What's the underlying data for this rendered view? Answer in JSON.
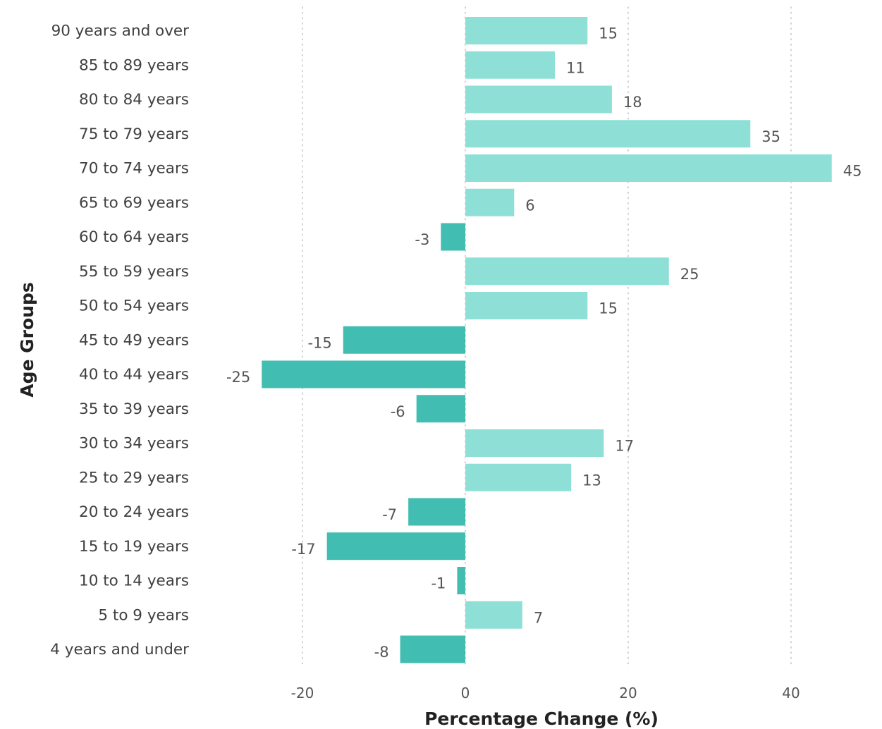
{
  "colors": {
    "positive": "#8ee0d6",
    "negative": "#42bdb1",
    "grid": "#c4c4c4",
    "category_text": "#404040",
    "tick_text": "#555555",
    "data_label_text": "#555555",
    "axis_title_text": "#222222"
  },
  "chart_data": {
    "type": "bar",
    "orientation": "horizontal",
    "xlabel": "Percentage Change (%)",
    "ylabel": "Age Groups",
    "xlim": [
      -30,
      47
    ],
    "xticks": [
      -20,
      0,
      20,
      40
    ],
    "grid": "vertical dotted",
    "categories": [
      "90 years and over",
      "85 to 89 years",
      "80 to 84 years",
      "75 to 79 years",
      "70 to 74 years",
      "65 to 69 years",
      "60 to 64 years",
      "55 to 59 years",
      "50 to 54 years",
      "45 to 49 years",
      "40 to 44 years",
      "35 to 39 years",
      "30 to 34 years",
      "25 to 29 years",
      "20 to 24 years",
      "15 to 19 years",
      "10 to 14 years",
      "5 to 9 years",
      "4 years and under"
    ],
    "values": [
      15,
      11,
      18,
      35,
      45,
      6,
      -3,
      25,
      15,
      -15,
      -25,
      -6,
      17,
      13,
      -7,
      -17,
      -1,
      7,
      -8
    ],
    "data_labels": [
      "15",
      "11",
      "18",
      "35",
      "45",
      "6",
      "-3",
      "25",
      "15",
      "-15",
      "-25",
      "-6",
      "17",
      "13",
      "-7",
      "-17",
      "-1",
      "7",
      "-8"
    ]
  }
}
